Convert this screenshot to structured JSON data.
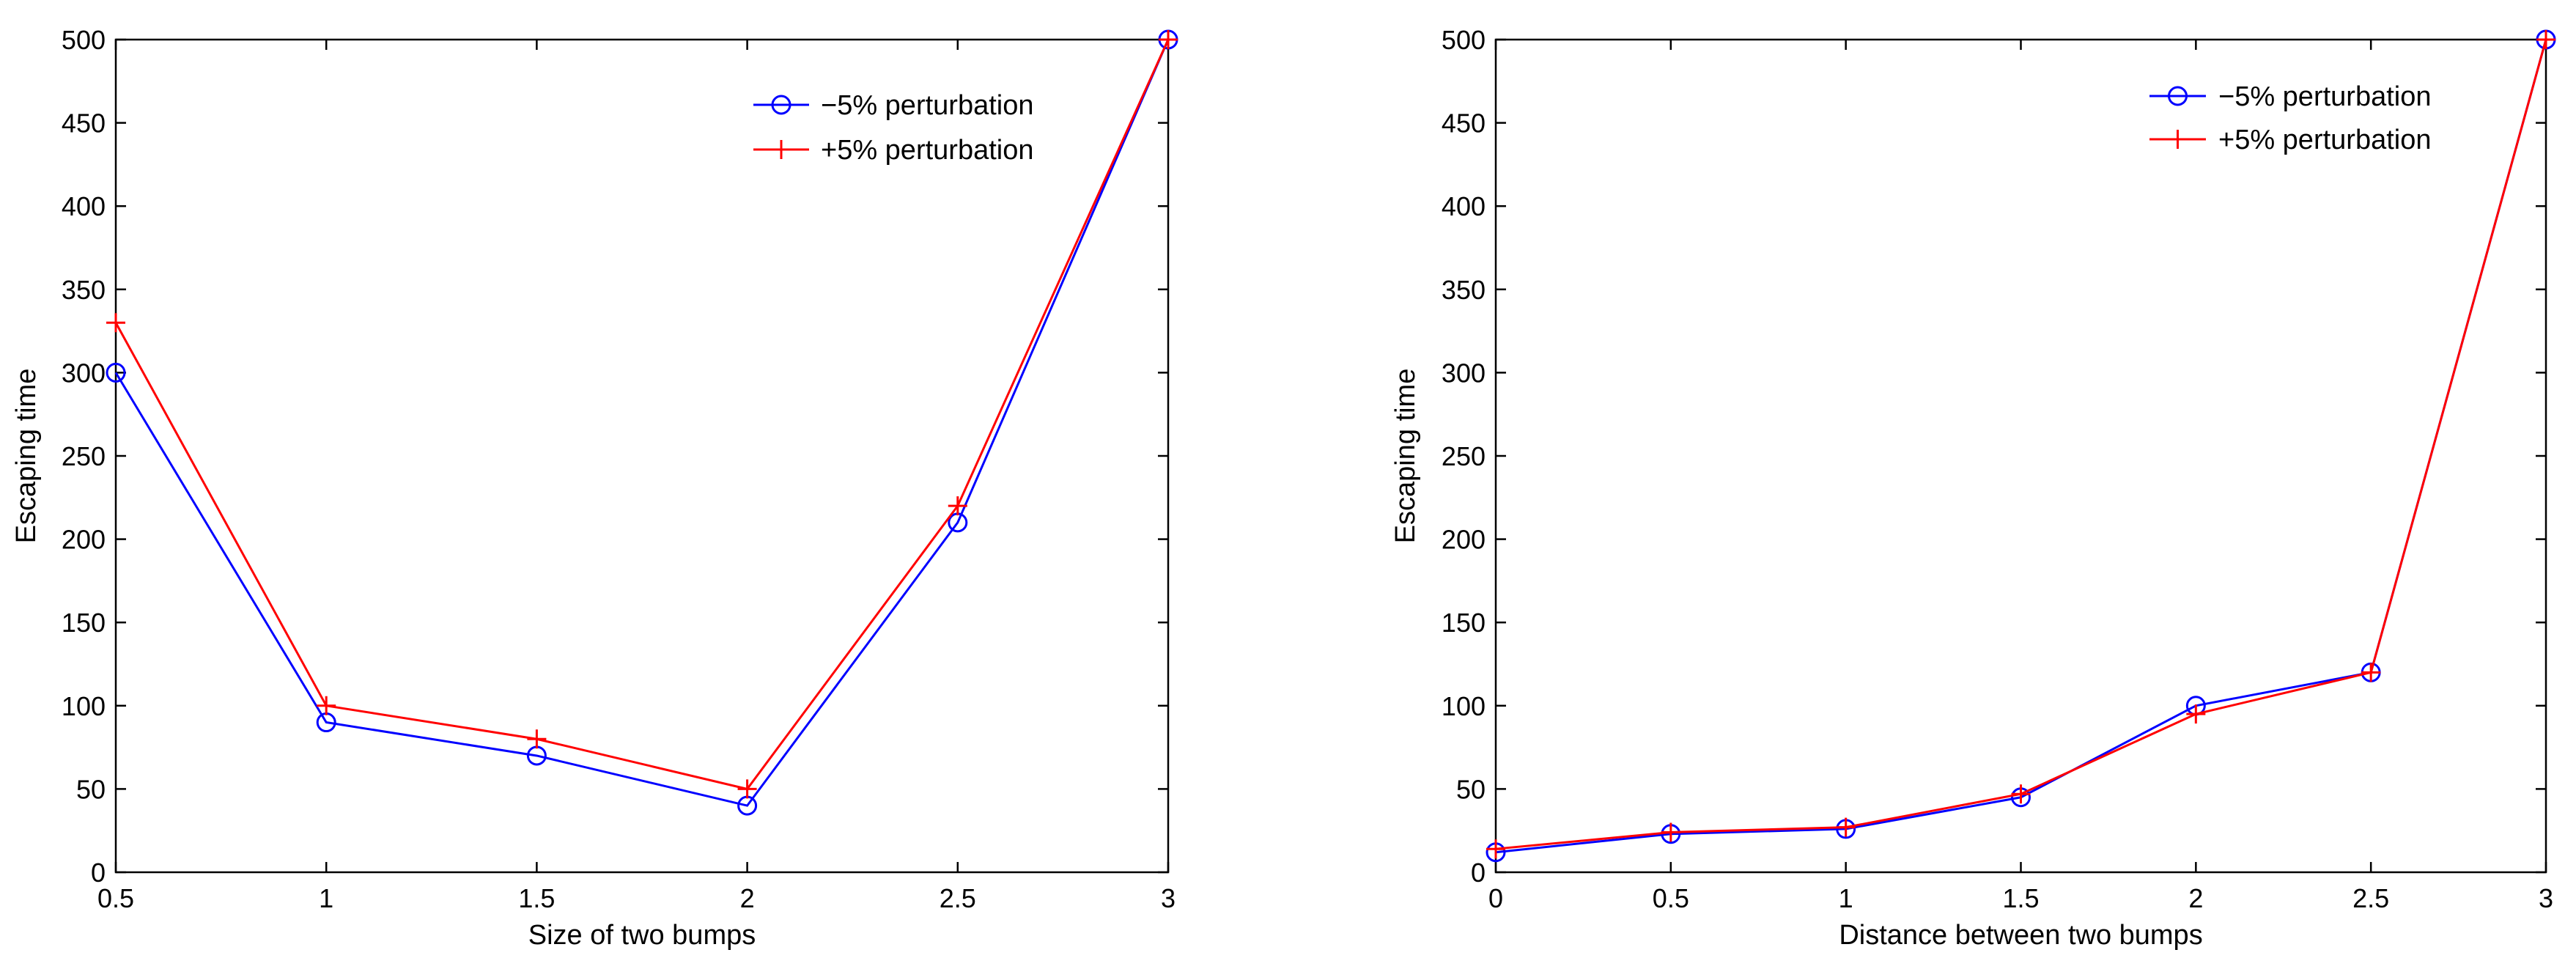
{
  "chart_data": [
    {
      "type": "line",
      "title": "",
      "xlabel": "Size of two bumps",
      "ylabel": "Escaping time",
      "xlim": [
        0.5,
        3
      ],
      "ylim": [
        0,
        500
      ],
      "xticks": [
        0.5,
        1,
        1.5,
        2,
        2.5,
        3
      ],
      "xtick_labels": [
        "0.5",
        "1",
        "1.5",
        "2",
        "2.5",
        "3"
      ],
      "yticks": [
        0,
        50,
        100,
        150,
        200,
        250,
        300,
        350,
        400,
        450,
        500
      ],
      "ytick_labels": [
        "0",
        "50",
        "100",
        "150",
        "200",
        "250",
        "300",
        "350",
        "400",
        "450",
        "500"
      ],
      "grid": false,
      "legend_position": "top-right",
      "x": [
        0.5,
        1,
        1.5,
        2,
        2.5,
        3
      ],
      "series": [
        {
          "name": "−5% perturbation",
          "color": "#0000ff",
          "marker": "circle",
          "values": [
            300,
            90,
            70,
            40,
            210,
            500
          ]
        },
        {
          "name": "+5% perturbation",
          "color": "#ff0000",
          "marker": "plus",
          "values": [
            330,
            100,
            80,
            50,
            220,
            500
          ]
        }
      ]
    },
    {
      "type": "line",
      "title": "",
      "xlabel": "Distance between two bumps",
      "ylabel": "Escaping time",
      "xlim": [
        0,
        3
      ],
      "ylim": [
        0,
        500
      ],
      "xticks": [
        0,
        0.5,
        1,
        1.5,
        2,
        2.5,
        3
      ],
      "xtick_labels": [
        "0",
        "0.5",
        "1",
        "1.5",
        "2",
        "2.5",
        "3"
      ],
      "yticks": [
        0,
        50,
        100,
        150,
        200,
        250,
        300,
        350,
        400,
        450,
        500
      ],
      "ytick_labels": [
        "0",
        "50",
        "100",
        "150",
        "200",
        "250",
        "300",
        "350",
        "400",
        "450",
        "500"
      ],
      "grid": false,
      "legend_position": "top-right",
      "x": [
        0,
        0.5,
        1,
        1.5,
        2,
        2.5,
        3
      ],
      "series": [
        {
          "name": "−5% perturbation",
          "color": "#0000ff",
          "marker": "circle",
          "values": [
            12,
            23,
            26,
            45,
            100,
            120,
            500
          ]
        },
        {
          "name": "+5% perturbation",
          "color": "#ff0000",
          "marker": "plus",
          "values": [
            14,
            24,
            27,
            47,
            95,
            120,
            500
          ]
        }
      ]
    }
  ]
}
